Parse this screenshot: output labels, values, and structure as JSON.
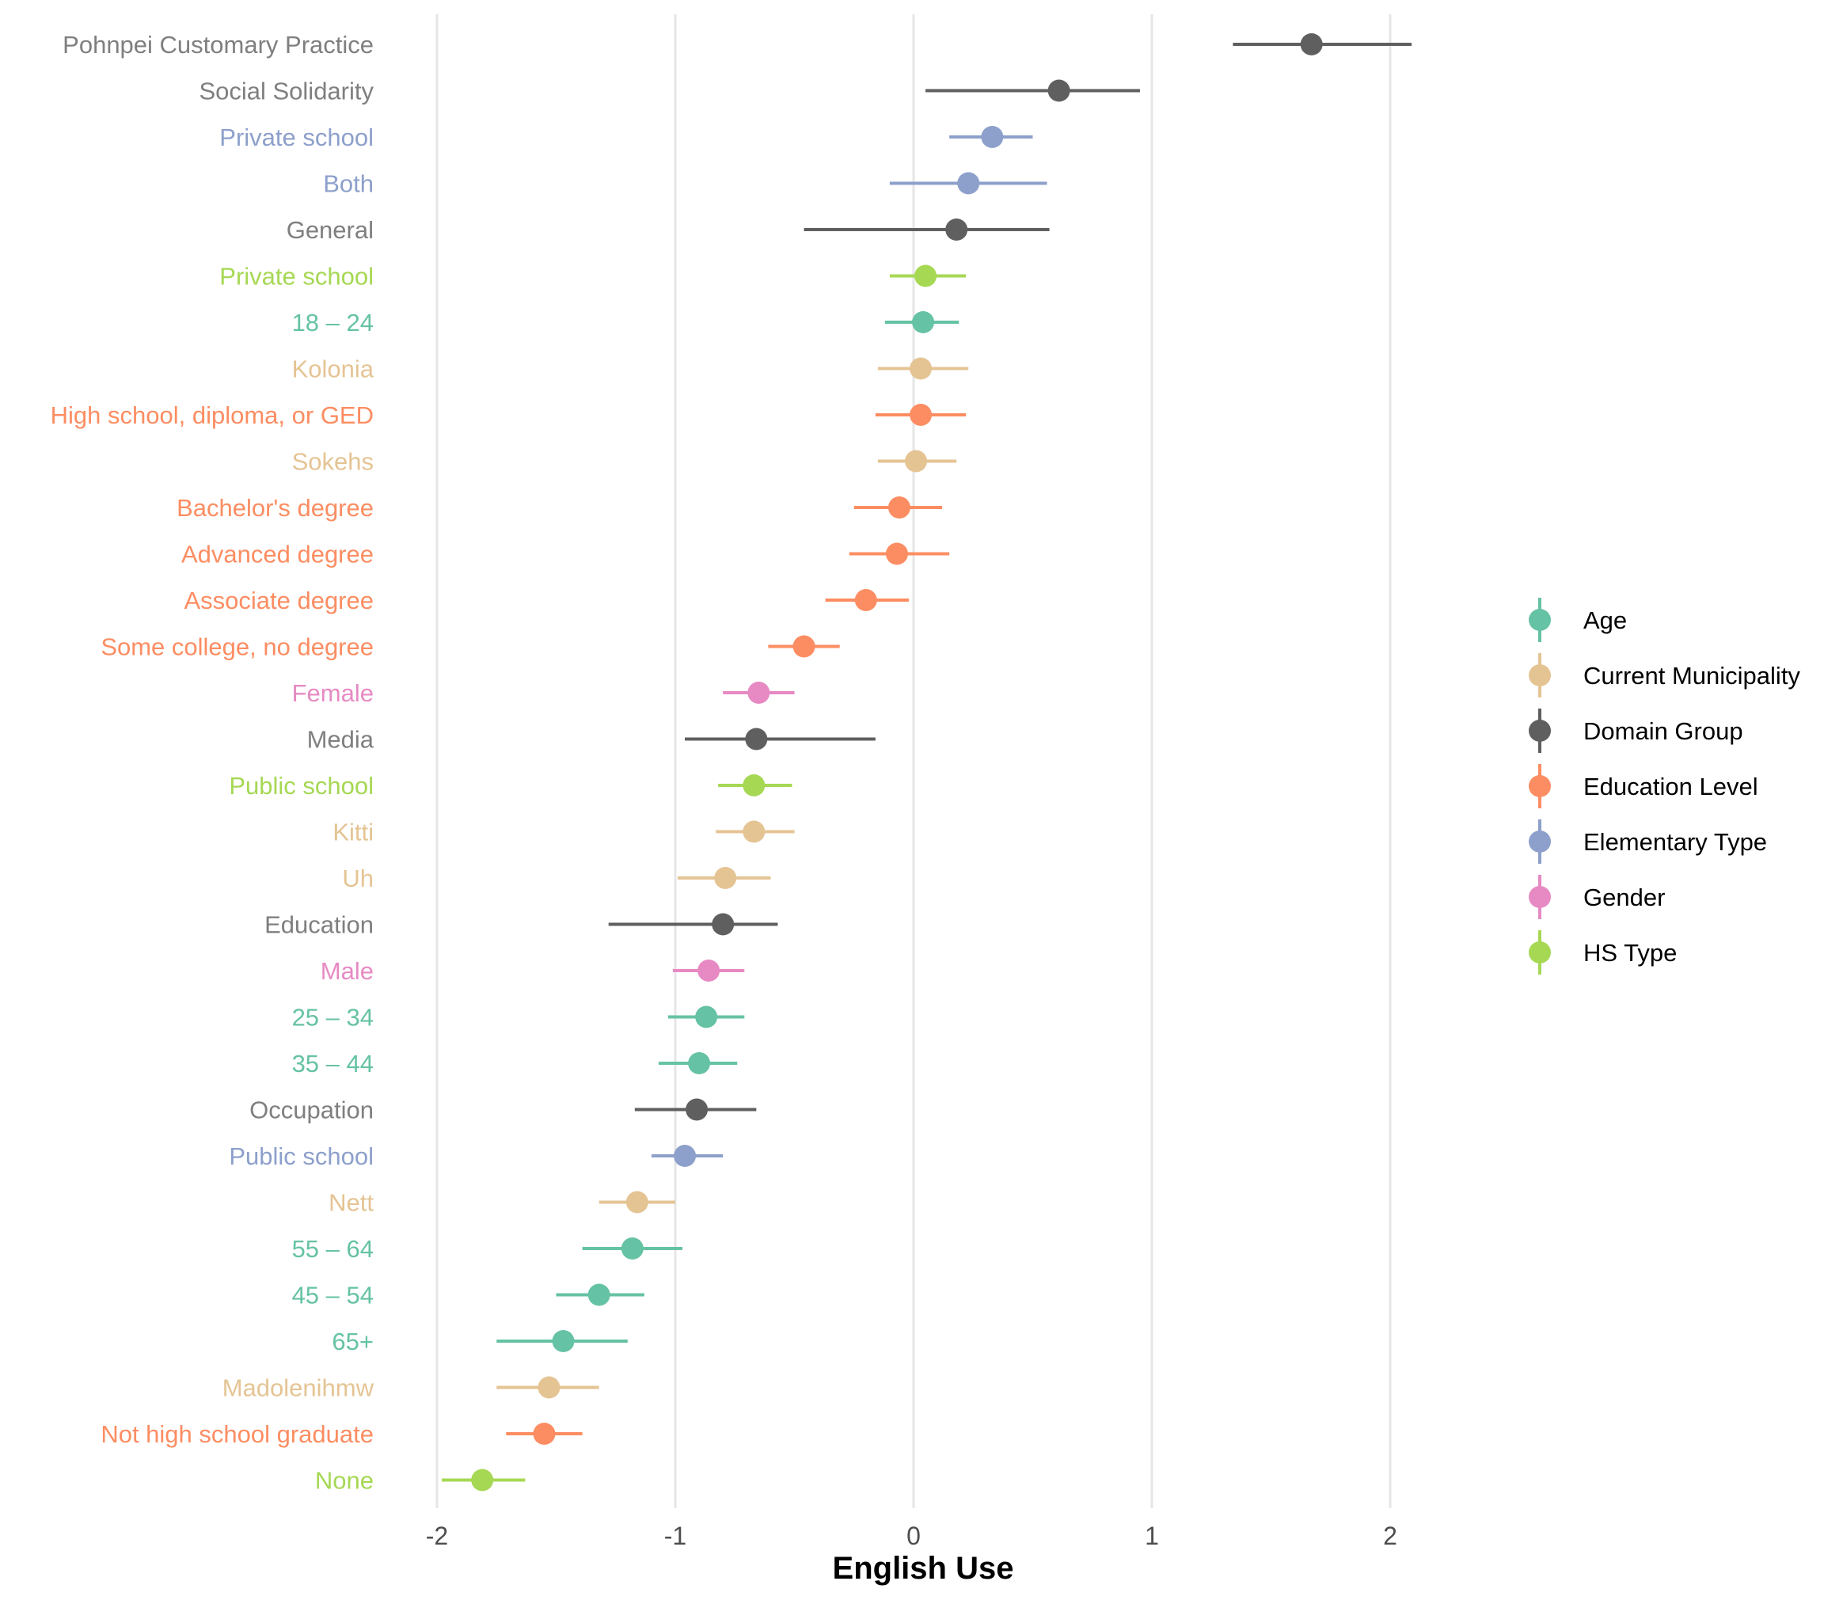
{
  "chart_data": {
    "type": "scatter",
    "subtype": "dot-and-whisker",
    "title": "",
    "xlabel": "English Use",
    "ylabel": "",
    "xlim": [
      -2.0,
      2.45
    ],
    "xticks": [
      -2,
      -1,
      0,
      1,
      2
    ],
    "xtick_labels": [
      "-2",
      "-1",
      "0",
      "1",
      "2"
    ],
    "grid": "vertical major gridlines",
    "legend": {
      "position": "right",
      "items": [
        {
          "label": "Age",
          "color": "#66c2a5"
        },
        {
          "label": "Current Municipality",
          "color": "#e5c494"
        },
        {
          "label": "Domain Group",
          "color": "#5f5f5f"
        },
        {
          "label": "Education Level",
          "color": "#fc8d62"
        },
        {
          "label": "Elementary Type",
          "color": "#8da0cb"
        },
        {
          "label": "Gender",
          "color": "#e78ac3"
        },
        {
          "label": "HS Type",
          "color": "#a6d854"
        }
      ]
    },
    "label_colors": {
      "Domain Group": "#7f7f7f"
    },
    "points": [
      {
        "label": "Pohnpei Customary Practice",
        "group": "Domain Group",
        "value": 1.67,
        "lower": 1.34,
        "upper": 2.09
      },
      {
        "label": "Social Solidarity",
        "group": "Domain Group",
        "value": 0.61,
        "lower": 0.05,
        "upper": 0.95
      },
      {
        "label": "Private school",
        "group": "Elementary Type",
        "value": 0.33,
        "lower": 0.15,
        "upper": 0.5
      },
      {
        "label": "Both",
        "group": "Elementary Type",
        "value": 0.23,
        "lower": -0.1,
        "upper": 0.56
      },
      {
        "label": "General",
        "group": "Domain Group",
        "value": 0.18,
        "lower": -0.46,
        "upper": 0.57
      },
      {
        "label": "Private school",
        "group": "HS Type",
        "value": 0.05,
        "lower": -0.1,
        "upper": 0.22
      },
      {
        "label": "18 – 24",
        "group": "Age",
        "value": 0.04,
        "lower": -0.12,
        "upper": 0.19
      },
      {
        "label": "Kolonia",
        "group": "Current Municipality",
        "value": 0.03,
        "lower": -0.15,
        "upper": 0.23
      },
      {
        "label": "High school, diploma, or GED",
        "group": "Education Level",
        "value": 0.03,
        "lower": -0.16,
        "upper": 0.22
      },
      {
        "label": "Sokehs",
        "group": "Current Municipality",
        "value": 0.01,
        "lower": -0.15,
        "upper": 0.18
      },
      {
        "label": "Bachelor's degree",
        "group": "Education Level",
        "value": -0.06,
        "lower": -0.25,
        "upper": 0.12
      },
      {
        "label": "Advanced degree",
        "group": "Education Level",
        "value": -0.07,
        "lower": -0.27,
        "upper": 0.15
      },
      {
        "label": "Associate degree",
        "group": "Education Level",
        "value": -0.2,
        "lower": -0.37,
        "upper": -0.02
      },
      {
        "label": "Some college, no degree",
        "group": "Education Level",
        "value": -0.46,
        "lower": -0.61,
        "upper": -0.31
      },
      {
        "label": "Female",
        "group": "Gender",
        "value": -0.65,
        "lower": -0.8,
        "upper": -0.5
      },
      {
        "label": "Media",
        "group": "Domain Group",
        "value": -0.66,
        "lower": -0.96,
        "upper": -0.16
      },
      {
        "label": "Public school",
        "group": "HS Type",
        "value": -0.67,
        "lower": -0.82,
        "upper": -0.51
      },
      {
        "label": "Kitti",
        "group": "Current Municipality",
        "value": -0.67,
        "lower": -0.83,
        "upper": -0.5
      },
      {
        "label": "Uh",
        "group": "Current Municipality",
        "value": -0.79,
        "lower": -0.99,
        "upper": -0.6
      },
      {
        "label": "Education",
        "group": "Domain Group",
        "value": -0.8,
        "lower": -1.28,
        "upper": -0.57
      },
      {
        "label": "Male",
        "group": "Gender",
        "value": -0.86,
        "lower": -1.01,
        "upper": -0.71
      },
      {
        "label": "25 – 34",
        "group": "Age",
        "value": -0.87,
        "lower": -1.03,
        "upper": -0.71
      },
      {
        "label": "35 – 44",
        "group": "Age",
        "value": -0.9,
        "lower": -1.07,
        "upper": -0.74
      },
      {
        "label": "Occupation",
        "group": "Domain Group",
        "value": -0.91,
        "lower": -1.17,
        "upper": -0.66
      },
      {
        "label": "Public school",
        "group": "Elementary Type",
        "value": -0.96,
        "lower": -1.1,
        "upper": -0.8
      },
      {
        "label": "Nett",
        "group": "Current Municipality",
        "value": -1.16,
        "lower": -1.32,
        "upper": -1.0
      },
      {
        "label": "55 – 64",
        "group": "Age",
        "value": -1.18,
        "lower": -1.39,
        "upper": -0.97
      },
      {
        "label": "45 – 54",
        "group": "Age",
        "value": -1.32,
        "lower": -1.5,
        "upper": -1.13
      },
      {
        "label": "65+",
        "group": "Age",
        "value": -1.47,
        "lower": -1.75,
        "upper": -1.2
      },
      {
        "label": "Madolenihmw",
        "group": "Current Municipality",
        "value": -1.53,
        "lower": -1.75,
        "upper": -1.32
      },
      {
        "label": "Not high school graduate",
        "group": "Education Level",
        "value": -1.55,
        "lower": -1.71,
        "upper": -1.39
      },
      {
        "label": "None",
        "group": "HS Type",
        "value": -1.81,
        "lower": -1.98,
        "upper": -1.63
      }
    ]
  }
}
